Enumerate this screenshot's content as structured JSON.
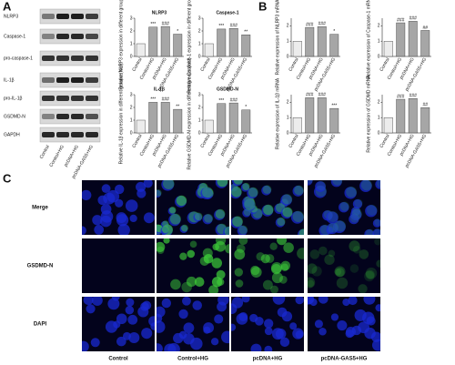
{
  "panels": [
    "A",
    "B",
    "C"
  ],
  "blot": {
    "rows": [
      "NLRP3",
      "Caspase-1",
      "pro-caspase-1",
      "IL-1β",
      "pro-IL-1β",
      "GSDMD-N",
      "GAPDH"
    ],
    "lanes": [
      "Control",
      "Control+HG",
      "pcDNA+HG",
      "pcDNA-GAS5+HG"
    ]
  },
  "chart_data": [
    {
      "type": "bar",
      "title": "NLRP3",
      "ylabel": "Relative NLRP3 expression in different groups (fold)",
      "categories": [
        "Control",
        "Control+HG",
        "pcDNA+HG",
        "pcDNA-GAS5+HG"
      ],
      "values": [
        1.0,
        2.3,
        2.35,
        1.75
      ],
      "annotations": [
        null,
        "***",
        "###",
        "*"
      ],
      "colors": [
        "#ececec",
        "#a6a6a6",
        "#a6a6a6",
        "#a6a6a6"
      ],
      "ylim": [
        0,
        3
      ],
      "yticks": [
        0,
        1,
        2,
        3
      ]
    },
    {
      "type": "bar",
      "title": "Caspase-1",
      "ylabel": "Relative Caspase-1 expression in different groups (fold)",
      "categories": [
        "Control",
        "Control+HG",
        "pcDNA+HG",
        "pcDNA-GAS5+HG"
      ],
      "values": [
        1.0,
        2.15,
        2.2,
        1.7
      ],
      "annotations": [
        null,
        "***",
        "###",
        "**"
      ],
      "colors": [
        "#ececec",
        "#a6a6a6",
        "#a6a6a6",
        "#a6a6a6"
      ],
      "ylim": [
        0,
        3
      ],
      "yticks": [
        0,
        1,
        2,
        3
      ]
    },
    {
      "type": "bar",
      "title": "IL-1β",
      "ylabel": "Relative IL-1β expression in different groups (fold)",
      "categories": [
        "Control",
        "Control+HG",
        "pcDNA+HG",
        "pcDNA-GAS5+HG"
      ],
      "values": [
        1.0,
        2.4,
        2.4,
        1.85
      ],
      "annotations": [
        null,
        "***",
        "###",
        "**"
      ],
      "colors": [
        "#ececec",
        "#a6a6a6",
        "#a6a6a6",
        "#a6a6a6"
      ],
      "ylim": [
        0,
        3
      ],
      "yticks": [
        0,
        1,
        2,
        3
      ]
    },
    {
      "type": "bar",
      "title": "GSDMD-N",
      "ylabel": "Relative GSDMD-N expression in different groups (fold)",
      "categories": [
        "Control",
        "Control+HG",
        "pcDNA+HG",
        "pcDNA-GAS5+HG"
      ],
      "values": [
        1.0,
        2.3,
        2.35,
        1.8
      ],
      "annotations": [
        null,
        "***",
        "###",
        "*"
      ],
      "colors": [
        "#ececec",
        "#a6a6a6",
        "#a6a6a6",
        "#a6a6a6"
      ],
      "ylim": [
        0,
        3
      ],
      "yticks": [
        0,
        1,
        2,
        3
      ]
    },
    {
      "type": "bar",
      "ylabel": "Relative expression of NLRP3 mRNA",
      "categories": [
        "Control",
        "Control+HG",
        "pcDNA+HG",
        "pcDNA-GAS5+HG"
      ],
      "values": [
        1.0,
        1.9,
        1.95,
        1.45
      ],
      "annotations": [
        null,
        "###",
        "###",
        "*"
      ],
      "colors": [
        "#ececec",
        "#a6a6a6",
        "#a6a6a6",
        "#a6a6a6"
      ],
      "ylim": [
        0,
        2.5
      ],
      "yticks": [
        0,
        1,
        2
      ]
    },
    {
      "type": "bar",
      "ylabel": "Relative expression of Caspase-1 mRNA",
      "categories": [
        "Control",
        "Control+HG",
        "pcDNA+HG",
        "pcDNA-GAS5+HG"
      ],
      "values": [
        1.0,
        2.2,
        2.3,
        1.7
      ],
      "annotations": [
        null,
        "###",
        "###",
        "##"
      ],
      "colors": [
        "#ececec",
        "#a6a6a6",
        "#a6a6a6",
        "#a6a6a6"
      ],
      "ylim": [
        0,
        2.5
      ],
      "yticks": [
        0,
        1,
        2
      ]
    },
    {
      "type": "bar",
      "ylabel": "Relative expression of IL-1β mRNA",
      "categories": [
        "Control",
        "Control+HG",
        "pcDNA+HG",
        "pcDNA-GAS5+HG"
      ],
      "values": [
        1.0,
        2.3,
        2.3,
        1.6
      ],
      "annotations": [
        null,
        "###",
        "###",
        "***"
      ],
      "colors": [
        "#ececec",
        "#a6a6a6",
        "#a6a6a6",
        "#a6a6a6"
      ],
      "ylim": [
        0,
        2.5
      ],
      "yticks": [
        0,
        1,
        2
      ]
    },
    {
      "type": "bar",
      "ylabel": "Relative expression of GSDMD mRNA",
      "categories": [
        "Control",
        "Control+HG",
        "pcDNA+HG",
        "pcDNA-GAS5+HG"
      ],
      "values": [
        1.0,
        2.2,
        2.25,
        1.65
      ],
      "annotations": [
        null,
        "###",
        "###",
        "##"
      ],
      "colors": [
        "#ececec",
        "#a6a6a6",
        "#a6a6a6",
        "#a6a6a6"
      ],
      "ylim": [
        0,
        2.5
      ],
      "yticks": [
        0,
        1,
        2
      ]
    }
  ],
  "micrographs": {
    "rows": [
      "Merge",
      "GSDMD-N",
      "DAPI"
    ],
    "columns": [
      "Control",
      "Control+HG",
      "pcDNA+HG",
      "pcDNA-GAS5+HG"
    ]
  }
}
